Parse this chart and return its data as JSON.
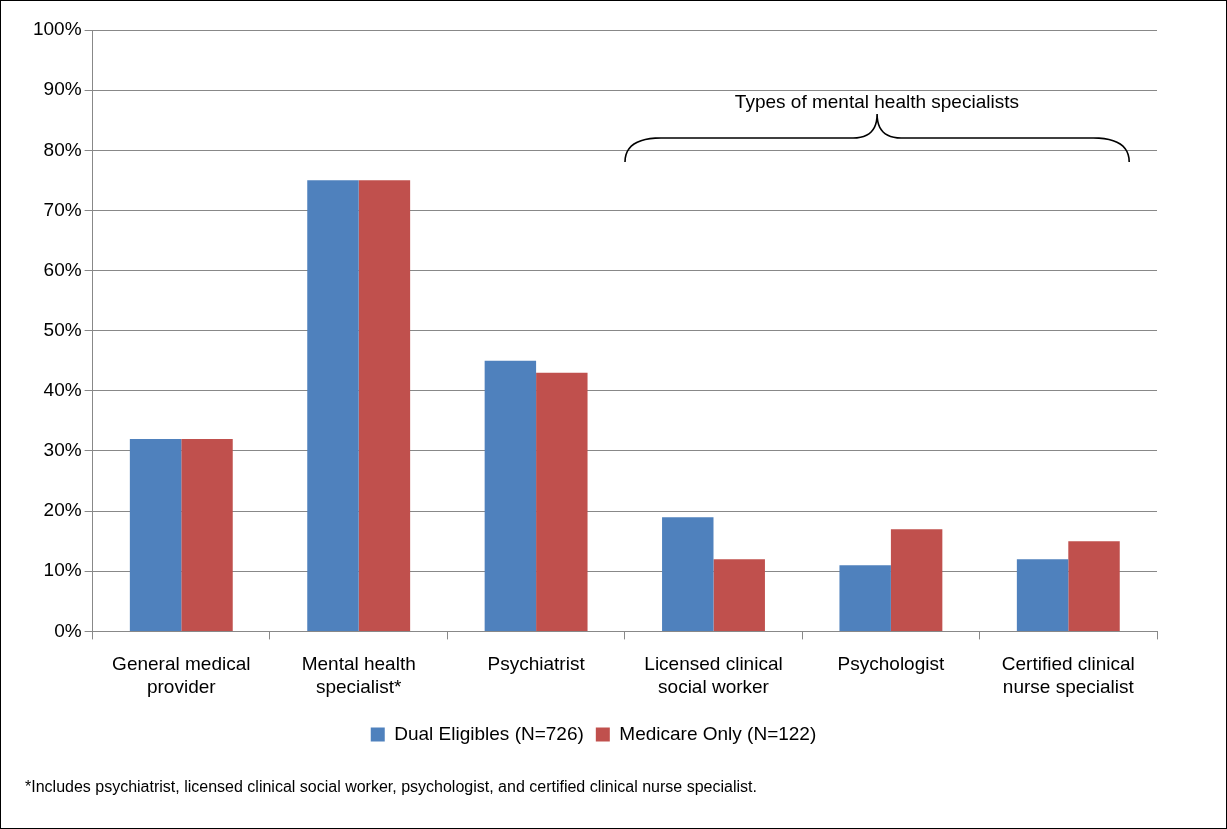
{
  "chart_data": {
    "type": "bar",
    "categories": [
      "General medical provider",
      "Mental health specialist*",
      "Psychiatrist",
      "Licensed clinical social worker",
      "Psychologist",
      "Certified clinical nurse specialist"
    ],
    "series": [
      {
        "name": "Dual Eligibles (N=726)",
        "color": "#4f81bd",
        "values": [
          32,
          75,
          45,
          19,
          11,
          12
        ]
      },
      {
        "name": "Medicare Only (N=122)",
        "color": "#c0504d",
        "values": [
          32,
          75,
          43,
          12,
          17,
          15
        ]
      }
    ],
    "ylim": [
      0,
      100
    ],
    "yticks": [
      {
        "value": 0,
        "label": "0%"
      },
      {
        "value": 10,
        "label": "10%"
      },
      {
        "value": 20,
        "label": "20%"
      },
      {
        "value": 30,
        "label": "30%"
      },
      {
        "value": 40,
        "label": "40%"
      },
      {
        "value": 50,
        "label": "50%"
      },
      {
        "value": 60,
        "label": "60%"
      },
      {
        "value": 70,
        "label": "70%"
      },
      {
        "value": 80,
        "label": "80%"
      },
      {
        "value": 90,
        "label": "90%"
      },
      {
        "value": 100,
        "label": "100%"
      }
    ],
    "grid": "y",
    "legend": "bottom",
    "annotations": [
      "Types of mental health specialists",
      "*Includes psychiatrist, licensed clinical social worker, psychologist, and certified clinical nurse specialist."
    ]
  }
}
